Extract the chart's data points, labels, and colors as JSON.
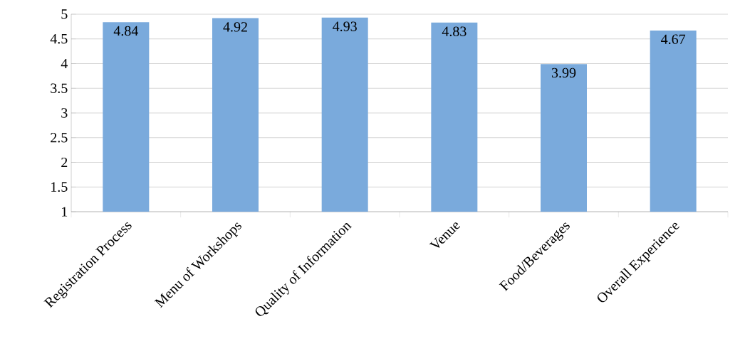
{
  "chart_data": {
    "type": "bar",
    "categories": [
      "Registration Process",
      "Menu of Workshops",
      "Quality of Information",
      "Venue",
      "Food/Beverages",
      "Overall Experience"
    ],
    "values": [
      4.84,
      4.92,
      4.93,
      4.83,
      3.99,
      4.67
    ],
    "color": "#7aaadc",
    "ylim": [
      1,
      5
    ],
    "yticks": [
      1,
      1.5,
      2,
      2.5,
      3,
      3.5,
      4,
      4.5,
      5
    ],
    "grid": "y",
    "data_labels": true
  }
}
